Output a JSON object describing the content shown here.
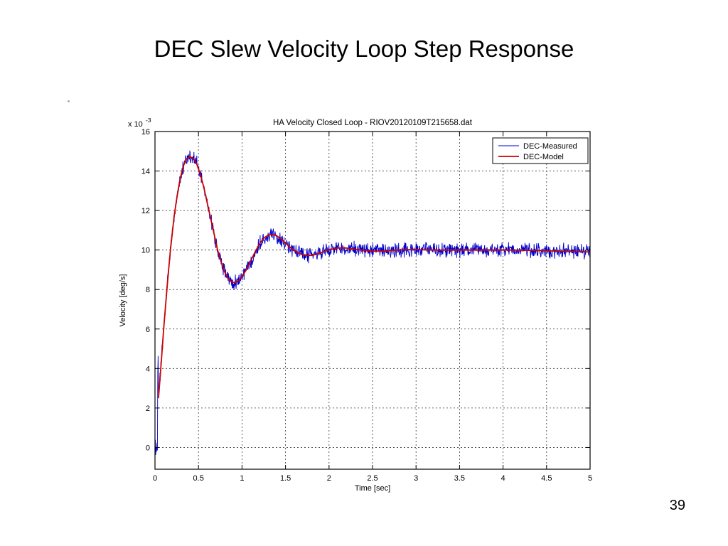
{
  "slide": {
    "title": "DEC Slew Velocity Loop Step Response",
    "page_number": "39"
  },
  "chart_data": {
    "type": "line",
    "title": "HA Velocity Closed Loop - RIOV20120109T215658.dat",
    "xlabel": "Time [sec]",
    "ylabel": "Velocity [deg/s]",
    "y_scale_prefix": "x 10",
    "y_scale_exponent": "-3",
    "xlim": [
      0,
      5
    ],
    "ylim": [
      -1.1,
      16
    ],
    "x_ticks": [
      0,
      0.5,
      1,
      1.5,
      2,
      2.5,
      3,
      3.5,
      4,
      4.5,
      5
    ],
    "x_tick_labels": [
      "0",
      "0.5",
      "1",
      "1.5",
      "2",
      "2.5",
      "3",
      "3.5",
      "4",
      "4.5",
      "5"
    ],
    "y_ticks": [
      0,
      2,
      4,
      6,
      8,
      10,
      12,
      14,
      16
    ],
    "y_tick_labels": [
      "0",
      "2",
      "4",
      "6",
      "8",
      "10",
      "12",
      "14",
      "16"
    ],
    "grid": true,
    "grid_color": "#333333",
    "legend_position": "top-right",
    "legend": [
      {
        "label": "DEC-Measured",
        "color": "#0000cc"
      },
      {
        "label": "DEC-Model",
        "color": "#cc0000"
      }
    ],
    "series": [
      {
        "name": "DEC-Measured",
        "color": "#0000cc",
        "style": "noisy",
        "noise_amplitude": 0.45,
        "sample_step": 0.004,
        "anchors": [
          [
            0.0,
            0.0
          ],
          [
            0.028,
            0.0
          ],
          [
            0.031,
            3.2
          ],
          [
            0.034,
            5.6
          ],
          [
            0.037,
            3.6
          ],
          [
            0.04,
            2.5
          ]
        ],
        "follows_model_after": 0.04
      },
      {
        "name": "DEC-Model",
        "color": "#cc0000",
        "style": "smooth",
        "anchors": [
          [
            0.04,
            2.5
          ],
          [
            0.06,
            3.6
          ],
          [
            0.08,
            4.8
          ],
          [
            0.1,
            6.0
          ],
          [
            0.12,
            7.1
          ],
          [
            0.15,
            8.7
          ],
          [
            0.18,
            10.1
          ],
          [
            0.2,
            10.9
          ],
          [
            0.22,
            11.7
          ],
          [
            0.25,
            12.6
          ],
          [
            0.28,
            13.4
          ],
          [
            0.3,
            13.8
          ],
          [
            0.33,
            14.3
          ],
          [
            0.36,
            14.6
          ],
          [
            0.4,
            14.72
          ],
          [
            0.44,
            14.65
          ],
          [
            0.48,
            14.35
          ],
          [
            0.52,
            13.85
          ],
          [
            0.56,
            13.2
          ],
          [
            0.6,
            12.4
          ],
          [
            0.64,
            11.6
          ],
          [
            0.68,
            10.8
          ],
          [
            0.72,
            10.0
          ],
          [
            0.76,
            9.4
          ],
          [
            0.8,
            8.9
          ],
          [
            0.84,
            8.55
          ],
          [
            0.88,
            8.38
          ],
          [
            0.92,
            8.35
          ],
          [
            0.96,
            8.45
          ],
          [
            1.0,
            8.65
          ],
          [
            1.05,
            9.0
          ],
          [
            1.1,
            9.45
          ],
          [
            1.15,
            9.9
          ],
          [
            1.2,
            10.3
          ],
          [
            1.25,
            10.6
          ],
          [
            1.3,
            10.75
          ],
          [
            1.35,
            10.8
          ],
          [
            1.4,
            10.72
          ],
          [
            1.45,
            10.55
          ],
          [
            1.5,
            10.35
          ],
          [
            1.55,
            10.15
          ],
          [
            1.6,
            9.98
          ],
          [
            1.65,
            9.85
          ],
          [
            1.7,
            9.76
          ],
          [
            1.75,
            9.72
          ],
          [
            1.8,
            9.73
          ],
          [
            1.85,
            9.78
          ],
          [
            1.9,
            9.86
          ],
          [
            1.95,
            9.94
          ],
          [
            2.0,
            10.02
          ],
          [
            2.1,
            10.1
          ],
          [
            2.2,
            10.1
          ],
          [
            2.3,
            10.04
          ],
          [
            2.4,
            9.98
          ],
          [
            2.5,
            9.94
          ],
          [
            2.6,
            9.94
          ],
          [
            2.7,
            9.97
          ],
          [
            2.8,
            10.0
          ],
          [
            2.9,
            10.02
          ],
          [
            3.0,
            10.02
          ],
          [
            3.2,
            10.0
          ],
          [
            3.4,
            9.99
          ],
          [
            3.6,
            10.0
          ],
          [
            3.8,
            10.0
          ],
          [
            4.0,
            10.0
          ],
          [
            4.2,
            9.99
          ],
          [
            4.4,
            9.97
          ],
          [
            4.6,
            9.95
          ],
          [
            4.8,
            9.93
          ],
          [
            5.0,
            9.9
          ]
        ]
      }
    ]
  }
}
